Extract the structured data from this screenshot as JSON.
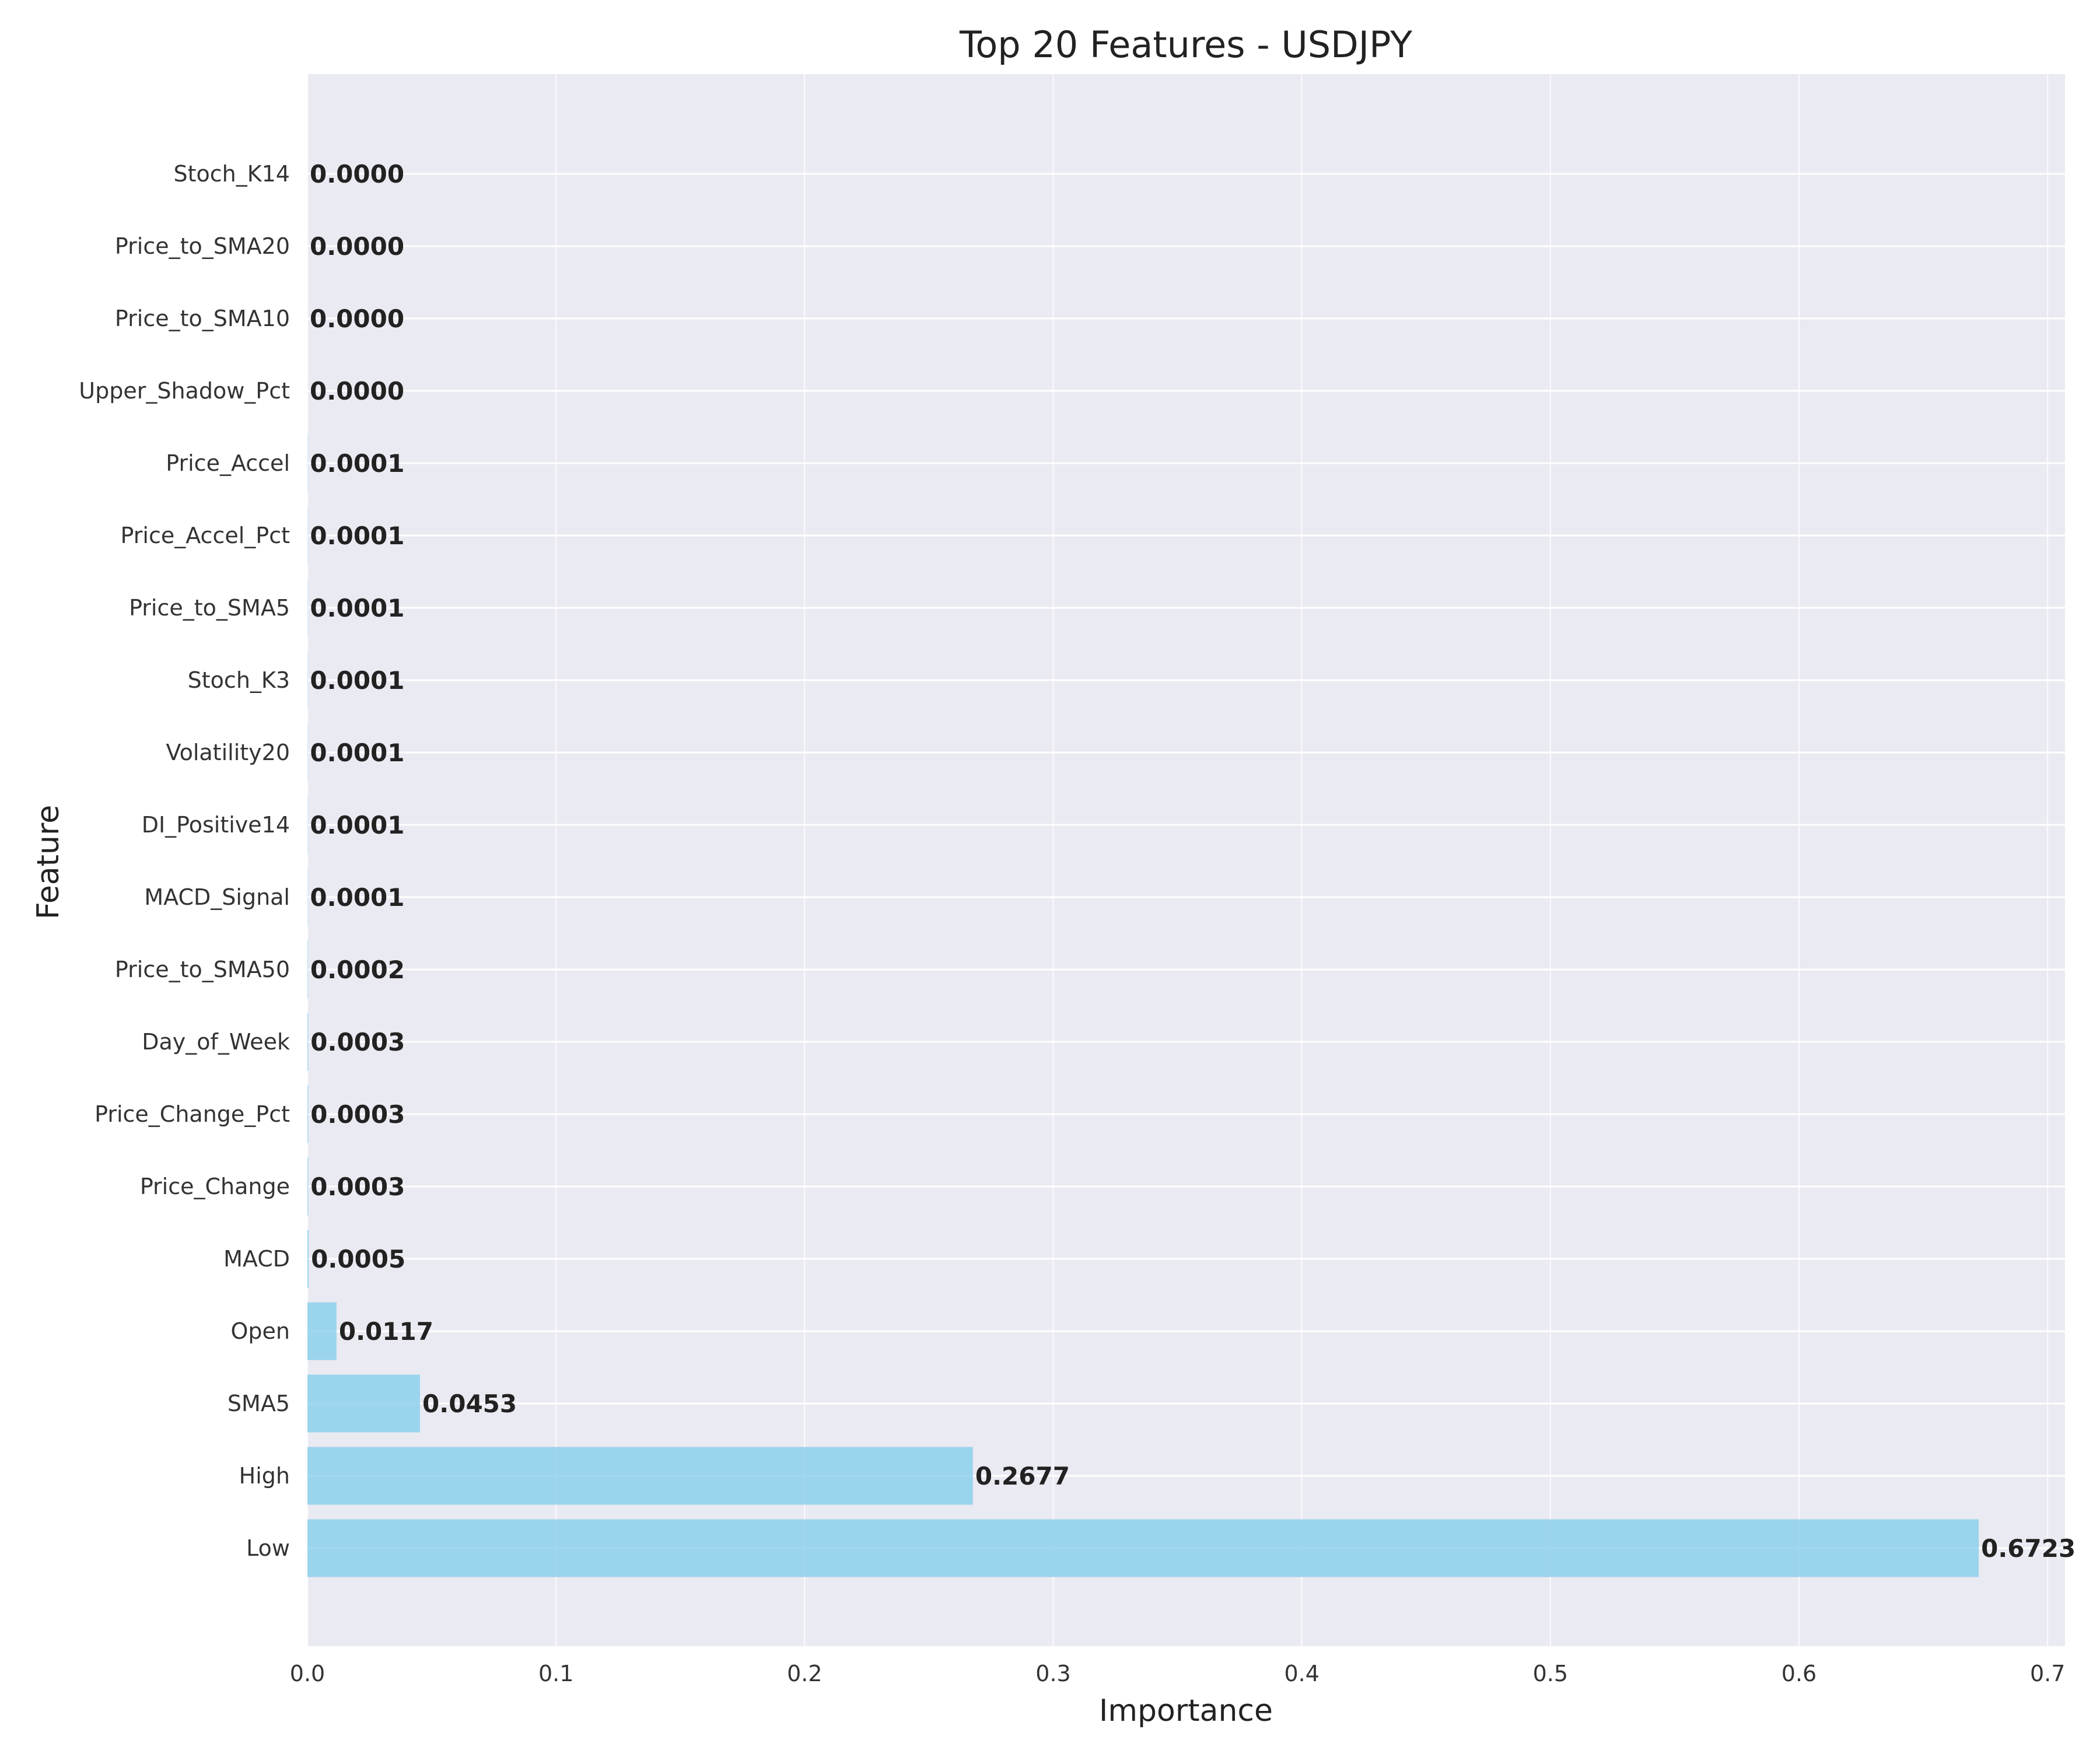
{
  "chart_data": {
    "type": "bar",
    "orientation": "horizontal",
    "title": "Top 20 Features - USDJPY",
    "xlabel": "Importance",
    "ylabel": "Feature",
    "xlim": [
      0,
      0.707
    ],
    "xticks": [
      0.0,
      0.1,
      0.2,
      0.3,
      0.4,
      0.5,
      0.6,
      0.7
    ],
    "xtick_labels": [
      "0.0",
      "0.1",
      "0.2",
      "0.3",
      "0.4",
      "0.5",
      "0.6",
      "0.7"
    ],
    "grid": true,
    "categories": [
      "Low",
      "High",
      "SMA5",
      "Open",
      "MACD",
      "Price_Change",
      "Price_Change_Pct",
      "Day_of_Week",
      "Price_to_SMA50",
      "MACD_Signal",
      "DI_Positive14",
      "Volatility20",
      "Stoch_K3",
      "Price_to_SMA5",
      "Price_Accel_Pct",
      "Price_Accel",
      "Upper_Shadow_Pct",
      "Price_to_SMA10",
      "Price_to_SMA20",
      "Stoch_K14"
    ],
    "values": [
      0.6723,
      0.2677,
      0.0453,
      0.0117,
      0.0005,
      0.0003,
      0.0003,
      0.0003,
      0.0002,
      0.0001,
      0.0001,
      0.0001,
      0.0001,
      0.0001,
      0.0001,
      0.0001,
      0.0,
      0.0,
      0.0,
      0.0
    ],
    "value_labels": [
      "0.6723",
      "0.2677",
      "0.0453",
      "0.0117",
      "0.0005",
      "0.0003",
      "0.0003",
      "0.0003",
      "0.0002",
      "0.0001",
      "0.0001",
      "0.0001",
      "0.0001",
      "0.0001",
      "0.0001",
      "0.0001",
      "0.0000",
      "0.0000",
      "0.0000",
      "0.0000"
    ],
    "colors": {
      "bar": "#87CEEB",
      "plot_background": "#EAEAF2",
      "grid": "#FFFFFF"
    }
  }
}
